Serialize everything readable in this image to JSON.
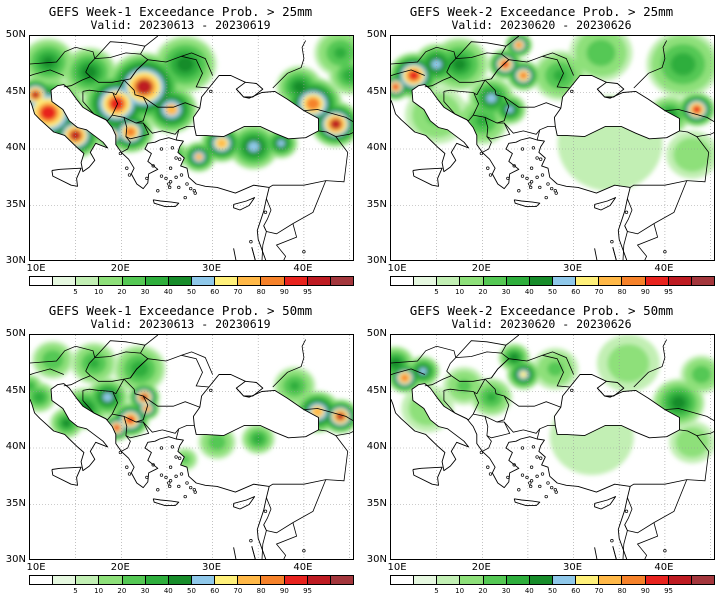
{
  "colorbar": {
    "colors": [
      "#ffffff",
      "#e6f8e0",
      "#c2efb4",
      "#8ee07a",
      "#55c854",
      "#2eae3c",
      "#178c2a",
      "#8fc8ea",
      "#fff07a",
      "#ffb847",
      "#f6822a",
      "#e8231e",
      "#be1b22",
      "#a3363c"
    ],
    "labels": [
      "5",
      "10",
      "20",
      "30",
      "40",
      "50",
      "60",
      "70",
      "80",
      "90",
      "95"
    ]
  },
  "axes": {
    "lat_labels": [
      "50N",
      "45N",
      "40N",
      "35N",
      "30N"
    ],
    "lon_labels": [
      "10E",
      "20E",
      "30E",
      "40E"
    ]
  },
  "panels": [
    {
      "title": "GEFS Week-1 Exceedance Prob. > 25mm",
      "valid": "Valid: 20230613 - 20230619",
      "blobs": [
        {
          "lon": 12,
          "lat": 43.2,
          "r": 3.6,
          "p": 92
        },
        {
          "lon": 15,
          "lat": 41.2,
          "r": 2.4,
          "p": 95
        },
        {
          "lon": 10.6,
          "lat": 44.8,
          "r": 1.8,
          "p": 95
        },
        {
          "lon": 19.5,
          "lat": 44,
          "r": 3.2,
          "p": 92
        },
        {
          "lon": 22.5,
          "lat": 45.5,
          "r": 3.6,
          "p": 95
        },
        {
          "lon": 21,
          "lat": 41.5,
          "r": 2.2,
          "p": 85
        },
        {
          "lon": 19,
          "lat": 41.2,
          "r": 1.5,
          "p": 80
        },
        {
          "lon": 25.5,
          "lat": 43.5,
          "r": 2.5,
          "p": 70
        },
        {
          "lon": 27,
          "lat": 47.5,
          "r": 3,
          "p": 45
        },
        {
          "lon": 16.5,
          "lat": 46.8,
          "r": 2.6,
          "p": 45
        },
        {
          "lon": 12,
          "lat": 47.7,
          "r": 2.5,
          "p": 42
        },
        {
          "lon": 31,
          "lat": 40.5,
          "r": 2,
          "p": 78
        },
        {
          "lon": 34.5,
          "lat": 40.2,
          "r": 2.4,
          "p": 55
        },
        {
          "lon": 28.5,
          "lat": 39.3,
          "r": 1.6,
          "p": 70
        },
        {
          "lon": 37.5,
          "lat": 40.5,
          "r": 1.6,
          "p": 55
        },
        {
          "lon": 26,
          "lat": 39.5,
          "r": 1.3,
          "p": 30
        },
        {
          "lon": 41,
          "lat": 44,
          "r": 2.8,
          "p": 85
        },
        {
          "lon": 43.5,
          "lat": 42.2,
          "r": 2.4,
          "p": 95
        },
        {
          "lon": 39.5,
          "lat": 45.5,
          "r": 2.2,
          "p": 45
        },
        {
          "lon": 45,
          "lat": 46.5,
          "r": 2,
          "p": 35
        },
        {
          "lon": 44,
          "lat": 48.5,
          "r": 2.5,
          "p": 30
        }
      ]
    },
    {
      "title": "GEFS Week-2 Exceedance Prob. > 25mm",
      "valid": "Valid: 20230620 - 20230626",
      "blobs": [
        {
          "lon": 12.5,
          "lat": 46.5,
          "r": 2.4,
          "p": 93
        },
        {
          "lon": 10.5,
          "lat": 45.5,
          "r": 1.4,
          "p": 90
        },
        {
          "lon": 15,
          "lat": 47.5,
          "r": 2.2,
          "p": 55
        },
        {
          "lon": 17.5,
          "lat": 47.5,
          "r": 2.8,
          "p": 40
        },
        {
          "lon": 22.5,
          "lat": 47.5,
          "r": 1.6,
          "p": 92
        },
        {
          "lon": 24.5,
          "lat": 46.5,
          "r": 1.6,
          "p": 85
        },
        {
          "lon": 24,
          "lat": 49.2,
          "r": 1.3,
          "p": 85
        },
        {
          "lon": 21,
          "lat": 44.5,
          "r": 2.2,
          "p": 50
        },
        {
          "lon": 23,
          "lat": 43.5,
          "r": 1.6,
          "p": 55
        },
        {
          "lon": 20,
          "lat": 42.5,
          "r": 2.5,
          "p": 30
        },
        {
          "lon": 15,
          "lat": 43,
          "r": 3,
          "p": 20
        },
        {
          "lon": 28.5,
          "lat": 46.5,
          "r": 2.6,
          "p": 30
        },
        {
          "lon": 33,
          "lat": 48.5,
          "r": 3,
          "p": 25
        },
        {
          "lon": 42,
          "lat": 47.5,
          "r": 3.5,
          "p": 35
        },
        {
          "lon": 43.5,
          "lat": 43.5,
          "r": 1.8,
          "p": 92
        },
        {
          "lon": 40.5,
          "lat": 43,
          "r": 2,
          "p": 40
        },
        {
          "lon": 34,
          "lat": 40.5,
          "r": 5,
          "p": 8
        },
        {
          "lon": 43,
          "lat": 39.5,
          "r": 2.5,
          "p": 15
        }
      ]
    },
    {
      "title": "GEFS Week-1 Exceedance Prob. > 50mm",
      "valid": "Valid: 20230613 - 20230619",
      "blobs": [
        {
          "lon": 22.5,
          "lat": 44.5,
          "r": 1.5,
          "p": 95
        },
        {
          "lon": 21,
          "lat": 42.5,
          "r": 1.8,
          "p": 93
        },
        {
          "lon": 19.5,
          "lat": 41.8,
          "r": 1.4,
          "p": 90
        },
        {
          "lon": 22.8,
          "lat": 43.5,
          "r": 1.2,
          "p": 85
        },
        {
          "lon": 18.5,
          "lat": 44.5,
          "r": 2,
          "p": 55
        },
        {
          "lon": 16,
          "lat": 43.5,
          "r": 2.2,
          "p": 45
        },
        {
          "lon": 14,
          "lat": 42.2,
          "r": 1.6,
          "p": 40
        },
        {
          "lon": 11,
          "lat": 44.5,
          "r": 1.6,
          "p": 35
        },
        {
          "lon": 22,
          "lat": 47,
          "r": 2.5,
          "p": 35
        },
        {
          "lon": 17,
          "lat": 47.5,
          "r": 2.2,
          "p": 30
        },
        {
          "lon": 12.5,
          "lat": 47.8,
          "r": 2,
          "p": 28
        },
        {
          "lon": 41.5,
          "lat": 43.2,
          "r": 2.2,
          "p": 75
        },
        {
          "lon": 44,
          "lat": 42.8,
          "r": 1.8,
          "p": 95
        },
        {
          "lon": 39,
          "lat": 45.5,
          "r": 2,
          "p": 30
        },
        {
          "lon": 30.5,
          "lat": 40.5,
          "r": 1.8,
          "p": 25
        },
        {
          "lon": 35,
          "lat": 40.8,
          "r": 1.6,
          "p": 35
        },
        {
          "lon": 27,
          "lat": 39,
          "r": 1.2,
          "p": 20
        },
        {
          "lon": 10,
          "lat": 45.5,
          "r": 1.2,
          "p": 30
        }
      ]
    },
    {
      "title": "GEFS Week-2 Exceedance Prob. > 50mm",
      "valid": "Valid: 20230620 - 20230626",
      "blobs": [
        {
          "lon": 11.5,
          "lat": 46.2,
          "r": 1.6,
          "p": 88
        },
        {
          "lon": 13.5,
          "lat": 46.8,
          "r": 1.6,
          "p": 55
        },
        {
          "lon": 10.5,
          "lat": 47.5,
          "r": 1.8,
          "p": 45
        },
        {
          "lon": 24.5,
          "lat": 46.5,
          "r": 1.6,
          "p": 65
        },
        {
          "lon": 23.5,
          "lat": 48,
          "r": 1.5,
          "p": 45
        },
        {
          "lon": 21,
          "lat": 44.5,
          "r": 2,
          "p": 30
        },
        {
          "lon": 18,
          "lat": 45.5,
          "r": 2,
          "p": 20
        },
        {
          "lon": 14,
          "lat": 43.5,
          "r": 2.5,
          "p": 15
        },
        {
          "lon": 28,
          "lat": 47,
          "r": 2.2,
          "p": 20
        },
        {
          "lon": 41.5,
          "lat": 44,
          "r": 2.5,
          "p": 45
        },
        {
          "lon": 44,
          "lat": 46.5,
          "r": 2,
          "p": 25
        },
        {
          "lon": 36,
          "lat": 47.5,
          "r": 3,
          "p": 12
        },
        {
          "lon": 32,
          "lat": 41,
          "r": 4,
          "p": 8
        },
        {
          "lon": 43,
          "lat": 40.5,
          "r": 2.2,
          "p": 15
        }
      ]
    }
  ]
}
